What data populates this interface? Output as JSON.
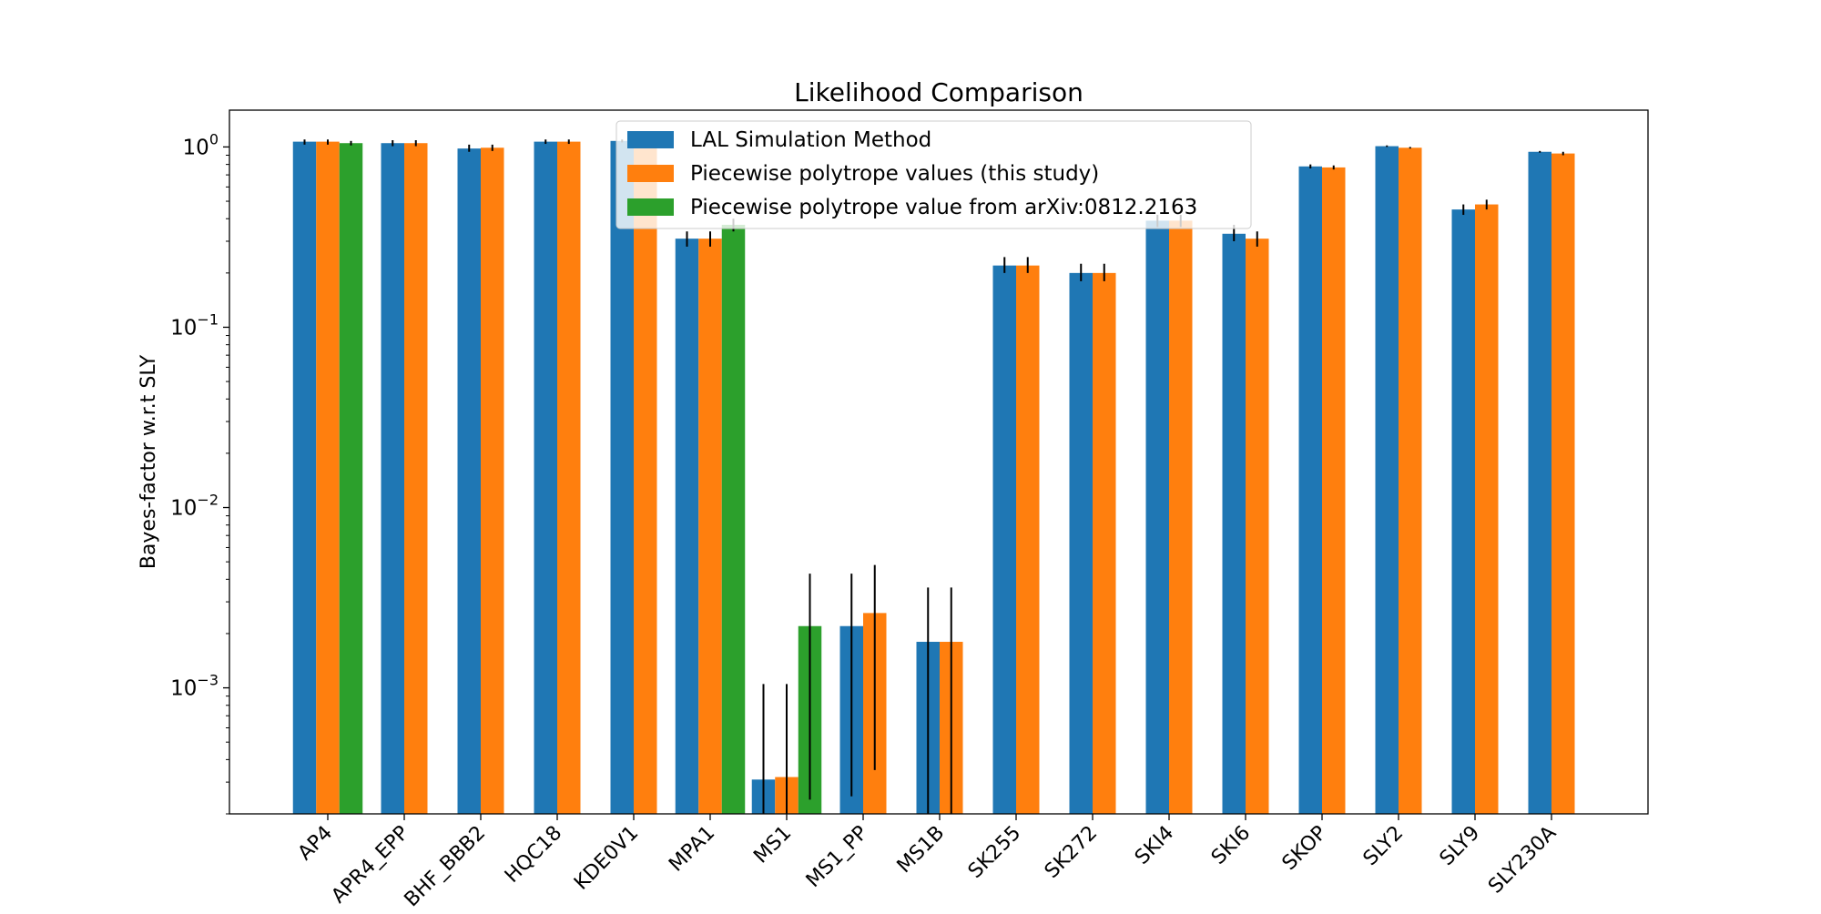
{
  "chart_data": {
    "type": "bar",
    "title": "Likelihood Comparison",
    "xlabel": "",
    "ylabel": "Bayes-factor w.r.t SLY",
    "yscale": "log",
    "ylim": [
      0.0002,
      1.6
    ],
    "grid": false,
    "legend_position": "top-center",
    "categories": [
      "AP4",
      "APR4_EPP",
      "BHF_BBB2",
      "HQC18",
      "KDE0V1",
      "MPA1",
      "MS1",
      "MS1_PP",
      "MS1B",
      "SK255",
      "SK272",
      "SKI4",
      "SKI6",
      "SKOP",
      "SLY2",
      "SLY9",
      "SLY230A"
    ],
    "y_ticks": [
      {
        "value": 0.001,
        "base": "10",
        "exp": "−3"
      },
      {
        "value": 0.01,
        "base": "10",
        "exp": "−2"
      },
      {
        "value": 0.1,
        "base": "10",
        "exp": "−1"
      },
      {
        "value": 1,
        "base": "10",
        "exp": "0"
      }
    ],
    "series": [
      {
        "name": "LAL Simulation Method",
        "color": "#1f77b4",
        "values": [
          1.07,
          1.05,
          0.98,
          1.07,
          1.08,
          0.31,
          0.00031,
          0.0022,
          0.0018,
          0.22,
          0.2,
          0.39,
          0.33,
          0.78,
          1.01,
          0.45,
          0.94
        ],
        "err_low": [
          1.03,
          1.01,
          0.94,
          1.04,
          1.06,
          0.28,
          0.0001,
          0.00025,
          0.0001,
          0.2,
          0.18,
          0.36,
          0.3,
          0.76,
          1.0,
          0.42,
          0.93
        ],
        "err_high": [
          1.1,
          1.09,
          1.03,
          1.1,
          1.1,
          0.34,
          0.00105,
          0.0043,
          0.0036,
          0.245,
          0.225,
          0.42,
          0.37,
          0.8,
          1.02,
          0.48,
          0.95
        ]
      },
      {
        "name": "Piecewise polytrope values (this study)",
        "color": "#ff7f0e",
        "values": [
          1.07,
          1.05,
          0.99,
          1.07,
          1.06,
          0.31,
          0.00032,
          0.0026,
          0.0018,
          0.22,
          0.2,
          0.39,
          0.31,
          0.77,
          0.99,
          0.48,
          0.92
        ],
        "err_low": [
          1.03,
          1.01,
          0.95,
          1.04,
          1.03,
          0.28,
          0.0001,
          0.00035,
          0.0001,
          0.2,
          0.18,
          0.36,
          0.28,
          0.75,
          0.98,
          0.45,
          0.9
        ],
        "err_high": [
          1.1,
          1.09,
          1.03,
          1.1,
          1.09,
          0.34,
          0.00105,
          0.0048,
          0.0036,
          0.245,
          0.225,
          0.42,
          0.34,
          0.79,
          1.0,
          0.51,
          0.94
        ]
      },
      {
        "name": "Piecewise polytrope value from arXiv:0812.2163",
        "color": "#2ca02c",
        "values": [
          1.05,
          null,
          null,
          null,
          null,
          0.37,
          0.0022,
          null,
          null,
          null,
          null,
          null,
          null,
          null,
          null,
          null,
          null
        ],
        "err_low": [
          1.02,
          null,
          null,
          null,
          null,
          0.34,
          0.00024,
          null,
          null,
          null,
          null,
          null,
          null,
          null,
          null,
          null,
          null
        ],
        "err_high": [
          1.08,
          null,
          null,
          null,
          null,
          0.4,
          0.0043,
          null,
          null,
          null,
          null,
          null,
          null,
          null,
          null,
          null,
          null
        ]
      }
    ]
  }
}
